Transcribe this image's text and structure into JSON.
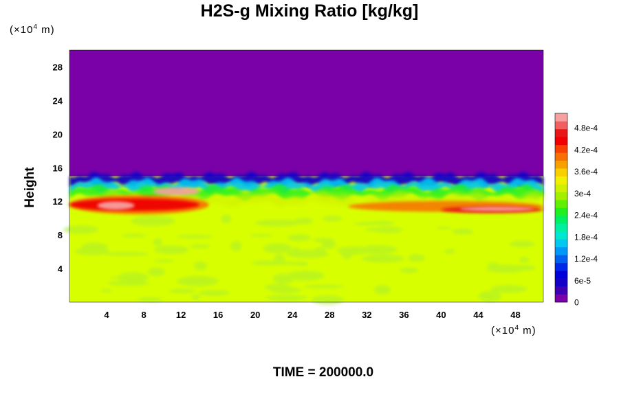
{
  "chart_data": {
    "type": "heatmap",
    "title": "H2S-g Mixing Ratio [kg/kg]",
    "ylabel": "Height",
    "x_unit": "(×10",
    "x_unit_exp": "4",
    "x_unit_tail": " m)",
    "y_unit": "(×10",
    "y_unit_exp": "4",
    "y_unit_tail": " m)",
    "xlim": [
      0,
      51
    ],
    "ylim": [
      0,
      30
    ],
    "x_ticks": [
      4,
      8,
      12,
      16,
      20,
      24,
      28,
      32,
      36,
      40,
      44,
      48
    ],
    "y_ticks": [
      4,
      8,
      12,
      16,
      20,
      24,
      28
    ],
    "x_tick_labels": [
      "4",
      "8",
      "12",
      "16",
      "20",
      "24",
      "28",
      "32",
      "36",
      "40",
      "44",
      "48"
    ],
    "y_tick_labels": [
      "4",
      "8",
      "12",
      "16",
      "20",
      "24",
      "28"
    ],
    "colorbar": {
      "labels": [
        "0",
        "6e-5",
        "1.2e-4",
        "1.8e-4",
        "2.4e-4",
        "3e-4",
        "3.6e-4",
        "4.2e-4",
        "4.8e-4"
      ],
      "values": [
        0,
        6e-05,
        0.00012,
        0.00018,
        0.00024,
        0.0003,
        0.00036,
        0.00042,
        0.00048
      ],
      "max": 0.00052,
      "colors": [
        "#7a00a8",
        "#3f00b5",
        "#1500c8",
        "#0000d8",
        "#0028e8",
        "#0060f0",
        "#0098f8",
        "#00c8f0",
        "#00e8d0",
        "#00f0a0",
        "#00f060",
        "#20f020",
        "#60f000",
        "#a0f000",
        "#d0f000",
        "#f0f000",
        "#f8d000",
        "#f8a000",
        "#f87000",
        "#f84000",
        "#f00000",
        "#e81818",
        "#f06060",
        "#f8a0a0"
      ]
    },
    "field": {
      "background": "#7a00a8",
      "bulk": "#d8ff00",
      "bulk_value": 0.00035,
      "interface_height": 15,
      "high_band_height": 11,
      "high_band_value": 0.0005
    },
    "footer_text": "TIME = 200000.0"
  }
}
